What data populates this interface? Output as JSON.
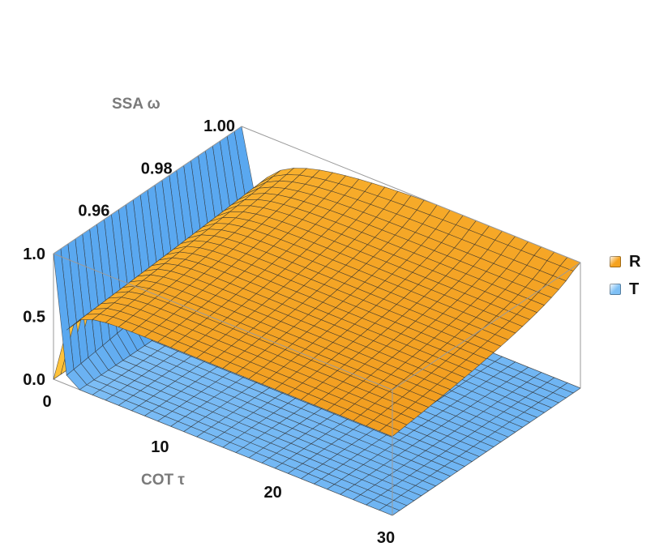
{
  "chart_data": {
    "type": "surface3d",
    "axes": {
      "x": {
        "label": "COT τ",
        "range": [
          0,
          30
        ],
        "ticks": [
          "0",
          "10",
          "20",
          "30"
        ]
      },
      "y": {
        "label": "SSA ω",
        "range": [
          0.94,
          1.0
        ],
        "ticks": [
          "0.96",
          "0.98",
          "1.00"
        ]
      },
      "z": {
        "label": "",
        "range": [
          0,
          1
        ],
        "ticks": [
          "0.0",
          "0.5",
          "1.0"
        ]
      }
    },
    "series": [
      {
        "name": "R",
        "color_low": "#e8820c",
        "color_high": "#ffc23a",
        "values_at_corners": {
          "tau0_w094": 0.0,
          "tau0_w100": 0.0,
          "tau30_w094": 0.45,
          "tau30_w100": 0.97
        }
      },
      {
        "name": "T",
        "color_low": "#5aa8f0",
        "color_high": "#bfe6ff",
        "values_at_corners": {
          "tau0_w094": 1.0,
          "tau0_w100": 1.0,
          "tau30_w094": 0.0,
          "tau30_w100": 0.05
        }
      }
    ],
    "legend": "right",
    "grid": "mesh"
  },
  "legend": {
    "items": [
      {
        "label": "R",
        "color": "#f5a21e"
      },
      {
        "label": "T",
        "color": "#7fc0f5"
      }
    ]
  }
}
